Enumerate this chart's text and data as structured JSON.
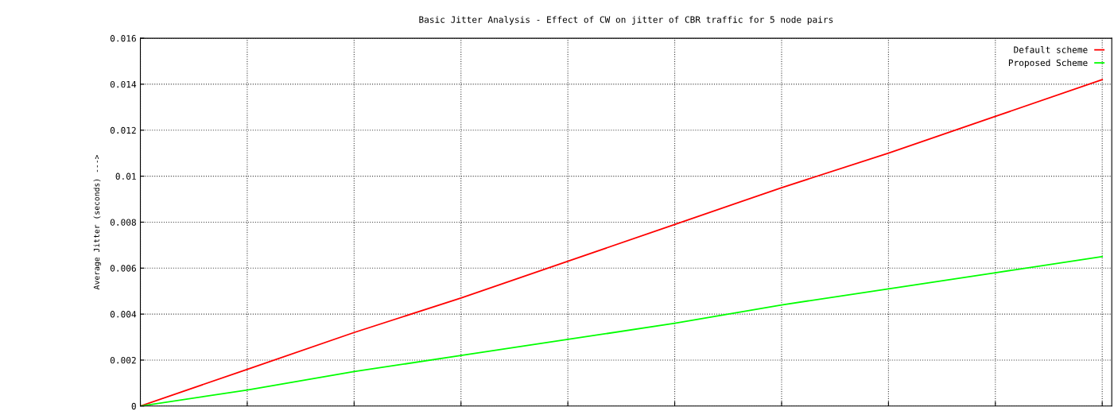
{
  "chart_data": {
    "type": "line",
    "title": "Basic Jitter Analysis - Effect of CW on jitter of CBR traffic for 5 node pairs",
    "ylabel": "Average Jitter (seconds) --->",
    "categories": [
      null,
      null,
      null,
      null,
      null,
      null,
      null,
      null,
      null,
      null
    ],
    "series": [
      {
        "name": "Default scheme",
        "color": "#ff0000",
        "values": [
          0,
          0.0016,
          0.0032,
          0.0047,
          0.0063,
          0.0079,
          0.0095,
          0.011,
          0.0126,
          0.0142
        ]
      },
      {
        "name": "Proposed Scheme",
        "color": "#00ff00",
        "values": [
          0,
          0.0007,
          0.0015,
          0.0022,
          0.0029,
          0.0036,
          0.0044,
          0.0051,
          0.0058,
          0.0065
        ]
      }
    ],
    "ylim": [
      0,
      0.016
    ],
    "yticks": [
      0,
      0.002,
      0.004,
      0.006,
      0.008,
      0.01,
      0.012,
      0.014,
      0.016
    ],
    "grid": true,
    "legend": "top right",
    "line_style": "solid",
    "marker": "none"
  }
}
